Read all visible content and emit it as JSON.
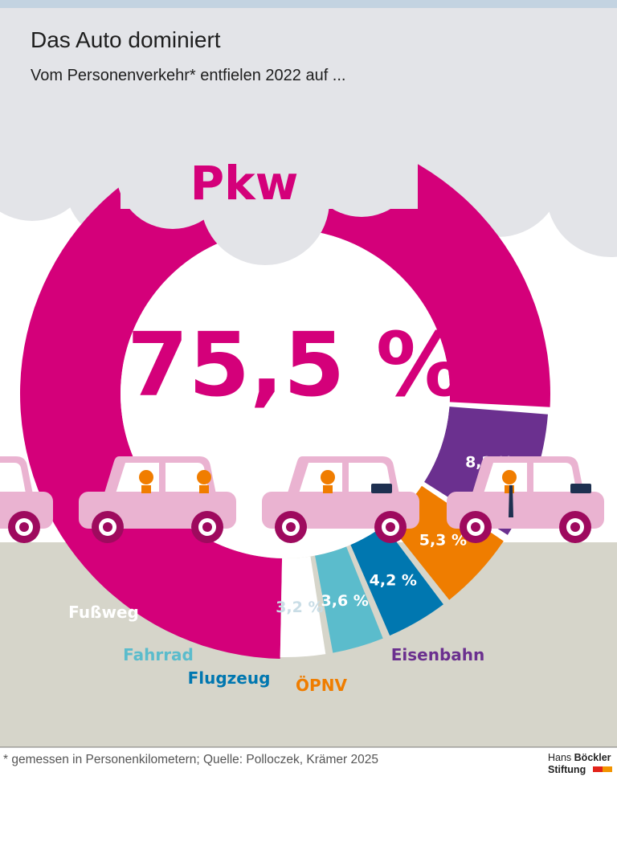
{
  "header": {
    "title": "Das Auto dominiert",
    "subtitle": "Vom Personenverkehr* entfielen 2022 auf ..."
  },
  "footnote": "* gemessen in Personenkilometern; Quelle: Polloczek, Krämer 2025",
  "logo": {
    "line1a": "Hans ",
    "line1b": "Böckler",
    "line2": "Stiftung"
  },
  "colors": {
    "sky": "#e3e4e8",
    "ground": "#d6d5ca",
    "car_body": "#eab3d1",
    "wheel": "#9e0a5e",
    "person": "#f07d00",
    "case": "#1e3050",
    "logo_red": "#e2231a",
    "logo_orange": "#f29400"
  },
  "chart_data": {
    "type": "pie",
    "title": "Das Auto dominiert",
    "subtitle": "Vom Personenverkehr* entfielen 2022 auf ...",
    "categories": [
      "Pkw",
      "Eisenbahn",
      "ÖPNV",
      "Flugzeug",
      "Fahrrad",
      "Fußweg"
    ],
    "values": [
      75.5,
      8.2,
      5.3,
      4.2,
      3.6,
      3.2
    ],
    "value_labels": [
      "75,5 %",
      "8,2 %",
      "5,3 %",
      "4,2 %",
      "3,6 %",
      "3,2 %"
    ],
    "colors": [
      "#d4007a",
      "#6b308f",
      "#ef7d00",
      "#0077b0",
      "#5bbccc",
      "#ffffff"
    ],
    "label_colors": [
      "#d4007a",
      "#6b308f",
      "#ef7d00",
      "#0077b0",
      "#5bbccc",
      "#ffffff"
    ],
    "unit": "%"
  }
}
